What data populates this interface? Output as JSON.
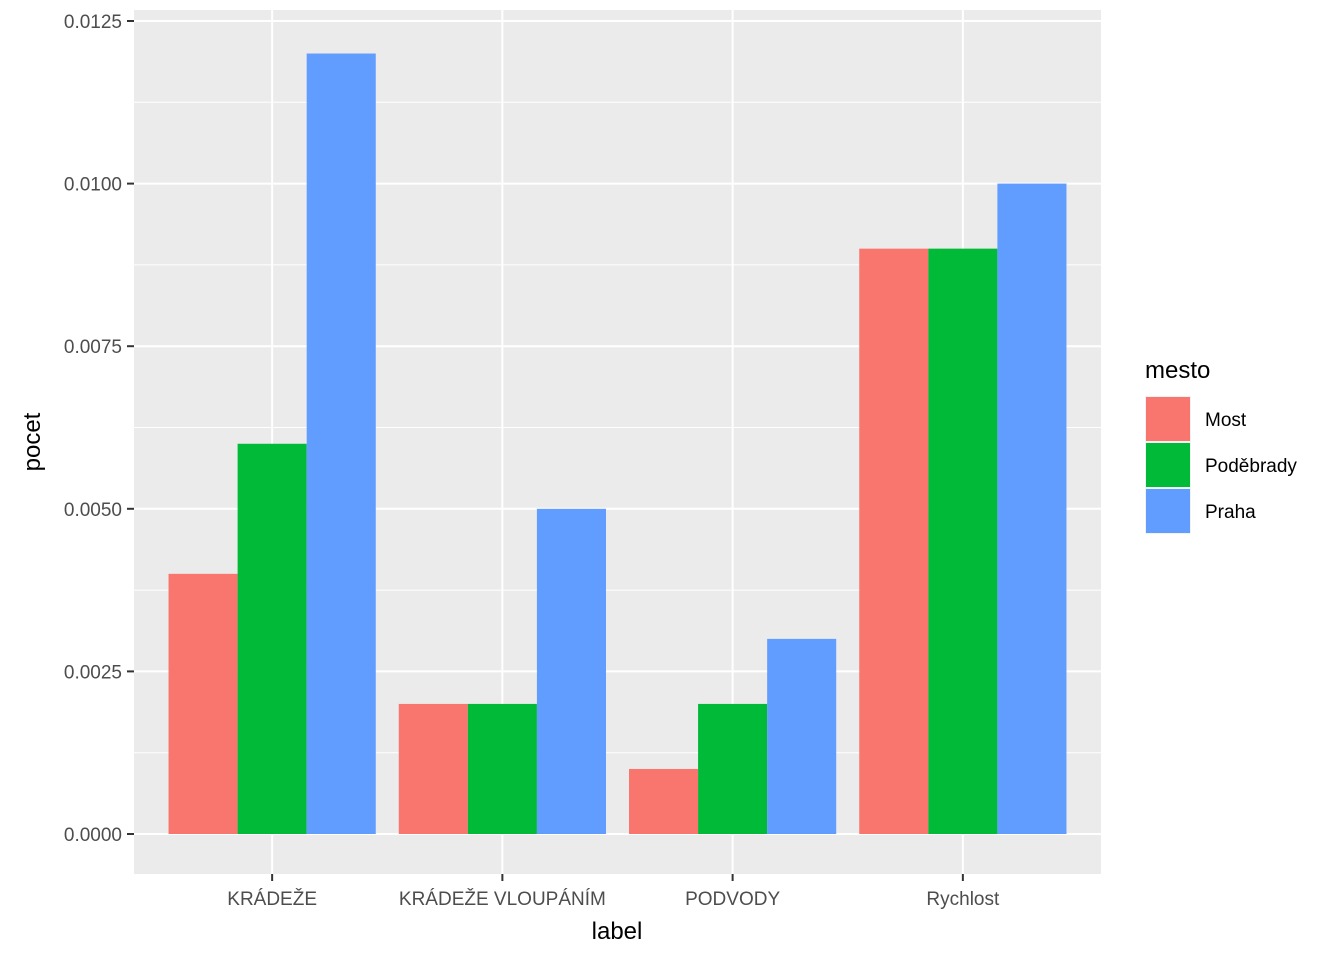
{
  "chart_data": {
    "type": "bar",
    "title": "",
    "xlabel": "label",
    "ylabel": "pocet",
    "categories": [
      "KRÁDEŽE",
      "KRÁDEŽE VLOUPÁNÍM",
      "PODVODY",
      "Rychlost"
    ],
    "series": [
      {
        "name": "Most",
        "color": "#F8766D",
        "values": [
          0.004,
          0.002,
          0.001,
          0.009
        ]
      },
      {
        "name": "Poděbrady",
        "color": "#00BA38",
        "values": [
          0.006,
          0.002,
          0.002,
          0.009
        ]
      },
      {
        "name": "Praha",
        "color": "#619CFF",
        "values": [
          0.012,
          0.005,
          0.003,
          0.01
        ]
      }
    ],
    "ylim": [
      0,
      0.0125
    ],
    "yticks": [
      "0.0000",
      "0.0025",
      "0.0050",
      "0.0075",
      "0.0100",
      "0.0125"
    ],
    "grid": true,
    "panel_background": "#EBEBEB",
    "legend": {
      "title": "mesto",
      "position": "right"
    }
  }
}
